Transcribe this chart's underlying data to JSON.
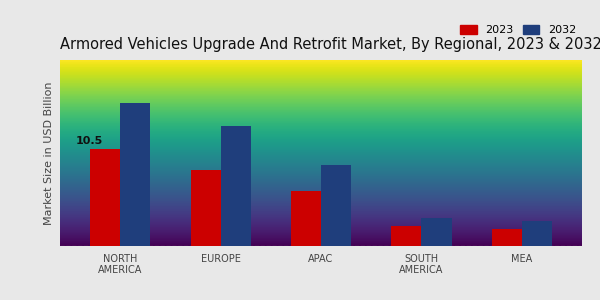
{
  "title": "Armored Vehicles Upgrade And Retrofit Market, By Regional, 2023 & 2032",
  "categories": [
    "NORTH\nAMERICA",
    "EUROPE",
    "APAC",
    "SOUTH\nAMERICA",
    "MEA"
  ],
  "values_2023": [
    10.5,
    8.2,
    6.0,
    2.2,
    1.8
  ],
  "values_2032": [
    15.5,
    13.0,
    8.8,
    3.0,
    2.7
  ],
  "color_2023": "#cc0000",
  "color_2032": "#1f3e7c",
  "ylabel": "Market Size in USD Billion",
  "legend_labels": [
    "2023",
    "2032"
  ],
  "annotation_text": "10.5",
  "background_top": "#f0f0f0",
  "background_bottom": "#d0d0d0",
  "bar_width": 0.3,
  "title_fontsize": 10.5,
  "label_fontsize": 7,
  "ylabel_fontsize": 8,
  "bottom_stripe_color": "#cc0000",
  "annotation_color": "#111111"
}
